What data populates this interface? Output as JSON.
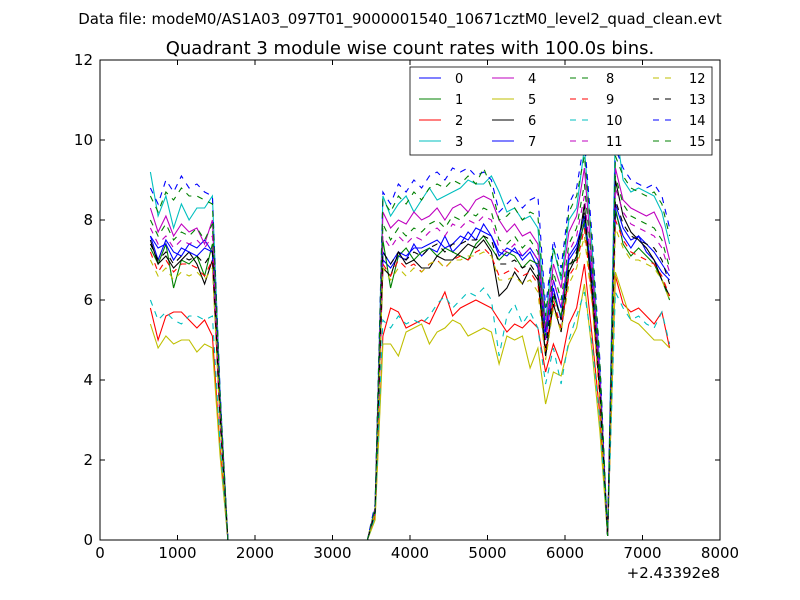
{
  "suptitle": "Data file: modeM0/AS1A03_097T01_9000001540_10671cztM0_level2_quad_clean.evt",
  "chart_data": {
    "type": "line",
    "title": "Quadrant 3 module wise count rates with 100.0s bins.",
    "xlabel": "",
    "ylabel": "",
    "xlim": [
      0,
      8000
    ],
    "ylim": [
      0,
      12
    ],
    "x_offset_label": "+2.43392e8",
    "xticks": [
      "0",
      "1000",
      "2000",
      "3000",
      "4000",
      "5000",
      "6000",
      "7000",
      "8000"
    ],
    "yticks": [
      "0",
      "2",
      "4",
      "6",
      "8",
      "10",
      "12"
    ],
    "grid": false,
    "legend": {
      "placement": "top-right",
      "columns": 4
    },
    "x": [
      650,
      750,
      850,
      950,
      1050,
      1150,
      1250,
      1350,
      1450,
      1550,
      1650,
      1750,
      1850,
      1950,
      2050,
      2150,
      2250,
      2350,
      2450,
      2550,
      2650,
      2750,
      2850,
      2950,
      3050,
      3150,
      3250,
      3350,
      3450,
      3550,
      3650,
      3750,
      3850,
      3950,
      4050,
      4150,
      4250,
      4350,
      4450,
      4550,
      4650,
      4750,
      4850,
      4950,
      5050,
      5150,
      5250,
      5350,
      5450,
      5550,
      5650,
      5750,
      5850,
      5950,
      6050,
      6150,
      6250,
      6350,
      6450,
      6550,
      6650,
      6750,
      6850,
      6950,
      7050,
      7150,
      7250,
      7350
    ],
    "series": [
      {
        "name": "0",
        "color": "#0000ff",
        "dash": "solid",
        "values": [
          7.6,
          7.0,
          7.5,
          7.2,
          7.1,
          7.4,
          7.3,
          7.5,
          7.2,
          3.0,
          0,
          0,
          0,
          0,
          0,
          0,
          0,
          0,
          0,
          0,
          0,
          0,
          0,
          0,
          0,
          0,
          0,
          0,
          0,
          0.7,
          7.0,
          6.8,
          7.1,
          7.0,
          7.4,
          7.1,
          7.3,
          7.2,
          7.6,
          7.2,
          7.4,
          7.7,
          7.5,
          7.9,
          7.6,
          7.2,
          7.1,
          7.3,
          7.0,
          7.2,
          6.8,
          5.0,
          6.3,
          5.5,
          7.0,
          7.3,
          7.9,
          6.5,
          4.0,
          0.1,
          8.2,
          7.6,
          7.3,
          7.6,
          7.2,
          7.0,
          6.7,
          6.5
        ]
      },
      {
        "name": "1",
        "color": "#008000",
        "dash": "solid",
        "values": [
          7.3,
          6.9,
          7.4,
          6.3,
          7.0,
          6.9,
          7.1,
          6.6,
          7.4,
          3.1,
          0,
          0,
          0,
          0,
          0,
          0,
          0,
          0,
          0,
          0,
          0,
          0,
          0,
          0,
          0,
          0,
          0,
          0,
          0,
          0.7,
          7.5,
          6.3,
          7.1,
          7.3,
          7.0,
          7.2,
          7.3,
          7.1,
          7.3,
          7.2,
          7.1,
          7.0,
          7.4,
          7.6,
          7.3,
          7.0,
          7.2,
          7.1,
          6.8,
          7.0,
          6.9,
          4.6,
          6.1,
          5.6,
          6.9,
          7.0,
          8.0,
          6.2,
          3.7,
          0.1,
          8.3,
          7.4,
          7.1,
          7.3,
          7.1,
          6.9,
          6.5,
          6.0
        ]
      },
      {
        "name": "2",
        "color": "#ff0000",
        "dash": "solid",
        "values": [
          5.8,
          5.0,
          5.6,
          5.7,
          5.7,
          5.5,
          5.3,
          5.5,
          5.1,
          2.3,
          0,
          0,
          0,
          0,
          0,
          0,
          0,
          0,
          0,
          0,
          0,
          0,
          0,
          0,
          0,
          0,
          0,
          0,
          0,
          0.6,
          5.1,
          5.8,
          5.7,
          5.3,
          5.4,
          5.5,
          5.4,
          5.8,
          6.2,
          5.6,
          5.8,
          5.9,
          6.0,
          5.9,
          5.8,
          5.5,
          5.2,
          5.4,
          5.3,
          5.5,
          5.3,
          4.2,
          4.9,
          4.4,
          5.4,
          5.8,
          6.9,
          5.1,
          3.1,
          0.1,
          6.6,
          5.9,
          5.7,
          5.8,
          5.6,
          5.4,
          5.7,
          4.8
        ]
      },
      {
        "name": "3",
        "color": "#00bfbf",
        "dash": "solid",
        "values": [
          9.2,
          8.1,
          8.6,
          7.8,
          8.4,
          8.0,
          8.3,
          8.3,
          8.6,
          3.7,
          0,
          0,
          0,
          0,
          0,
          0,
          0,
          0,
          0,
          0,
          0,
          0,
          0,
          0,
          0,
          0,
          0,
          0,
          0,
          0.8,
          8.6,
          8.1,
          8.4,
          8.6,
          8.2,
          8.5,
          8.8,
          8.5,
          8.6,
          8.7,
          8.8,
          9.0,
          8.9,
          8.9,
          9.1,
          8.7,
          8.2,
          8.3,
          8.0,
          8.1,
          7.8,
          5.5,
          7.3,
          6.5,
          8.0,
          8.3,
          9.8,
          7.3,
          4.3,
          0.1,
          10.4,
          9.0,
          8.7,
          8.8,
          8.7,
          8.6,
          8.2,
          7.4
        ]
      },
      {
        "name": "4",
        "color": "#bf00bf",
        "dash": "solid",
        "values": [
          8.3,
          7.7,
          8.1,
          7.6,
          7.9,
          7.7,
          7.8,
          7.4,
          8.0,
          3.5,
          0,
          0,
          0,
          0,
          0,
          0,
          0,
          0,
          0,
          0,
          0,
          0,
          0,
          0,
          0,
          0,
          0,
          0,
          0,
          0.8,
          8.2,
          7.8,
          8.0,
          7.9,
          8.2,
          8.0,
          8.1,
          8.3,
          8.0,
          8.3,
          8.4,
          8.2,
          8.5,
          8.6,
          8.5,
          8.0,
          7.7,
          7.9,
          7.6,
          7.7,
          7.4,
          5.3,
          6.9,
          6.3,
          7.7,
          8.1,
          9.3,
          6.9,
          4.1,
          0.1,
          9.3,
          8.5,
          8.3,
          8.2,
          8.1,
          8.2,
          7.8,
          7.0
        ]
      },
      {
        "name": "5",
        "color": "#bfbf00",
        "dash": "solid",
        "values": [
          5.4,
          4.8,
          5.1,
          4.9,
          5.0,
          5.0,
          4.7,
          4.9,
          4.8,
          2.1,
          0,
          0,
          0,
          0,
          0,
          0,
          0,
          0,
          0,
          0,
          0,
          0,
          0,
          0,
          0,
          0,
          0,
          0,
          0,
          0.5,
          4.9,
          4.9,
          4.6,
          5.2,
          5.3,
          5.4,
          4.9,
          5.2,
          5.3,
          5.5,
          5.4,
          5.1,
          5.2,
          5.3,
          5.2,
          4.4,
          5.1,
          5.0,
          5.1,
          4.3,
          4.8,
          3.4,
          4.2,
          4.1,
          4.9,
          5.3,
          6.4,
          4.7,
          2.7,
          0.1,
          6.7,
          6.1,
          5.5,
          5.4,
          5.2,
          5.0,
          5.0,
          4.8
        ]
      },
      {
        "name": "6",
        "color": "#000000",
        "dash": "solid",
        "values": [
          7.5,
          6.9,
          7.1,
          6.8,
          7.0,
          7.2,
          6.9,
          6.4,
          7.0,
          3.0,
          0,
          0,
          0,
          0,
          0,
          0,
          0,
          0,
          0,
          0,
          0,
          0,
          0,
          0,
          0,
          0,
          0,
          0,
          0,
          0.7,
          6.8,
          6.6,
          7.2,
          6.9,
          7.0,
          6.8,
          6.8,
          7.1,
          7.0,
          7.0,
          7.2,
          7.4,
          7.3,
          7.5,
          7.2,
          6.1,
          6.3,
          6.7,
          6.4,
          6.8,
          6.5,
          4.6,
          5.9,
          5.2,
          6.7,
          7.1,
          8.4,
          6.1,
          3.6,
          0.1,
          9.0,
          8.1,
          7.7,
          7.5,
          7.3,
          7.0,
          6.5,
          6.1
        ]
      },
      {
        "name": "7",
        "color": "#0000ff",
        "dash": "solid",
        "values": [
          7.6,
          7.3,
          7.4,
          7.0,
          7.3,
          7.2,
          7.1,
          7.3,
          7.2,
          3.0,
          0,
          0,
          0,
          0,
          0,
          0,
          0,
          0,
          0,
          0,
          0,
          0,
          0,
          0,
          0,
          0,
          0,
          0,
          0,
          0.7,
          7.2,
          6.9,
          7.2,
          7.1,
          7.3,
          7.3,
          7.4,
          7.5,
          7.3,
          7.4,
          7.6,
          7.5,
          7.8,
          7.7,
          7.6,
          7.1,
          7.3,
          7.2,
          7.1,
          7.3,
          7.0,
          5.2,
          6.5,
          5.8,
          7.1,
          7.4,
          8.1,
          6.6,
          3.9,
          0.1,
          8.4,
          7.8,
          7.5,
          7.6,
          7.4,
          7.2,
          6.9,
          6.6
        ]
      },
      {
        "name": "8",
        "color": "#008000",
        "dash": "dashed",
        "values": [
          8.0,
          7.6,
          7.9,
          7.5,
          7.7,
          7.6,
          7.8,
          7.5,
          7.9,
          3.4,
          0,
          0,
          0,
          0,
          0,
          0,
          0,
          0,
          0,
          0,
          0,
          0,
          0,
          0,
          0,
          0,
          0,
          0,
          0,
          0.8,
          7.9,
          7.5,
          7.8,
          7.6,
          7.8,
          7.7,
          7.9,
          8.0,
          7.8,
          8.1,
          8.0,
          8.2,
          8.1,
          8.3,
          8.2,
          7.5,
          7.4,
          7.6,
          7.3,
          7.5,
          7.2,
          5.1,
          6.7,
          6.0,
          7.4,
          7.8,
          8.9,
          6.8,
          4.0,
          0.1,
          9.1,
          8.4,
          8.1,
          8.0,
          7.9,
          7.8,
          7.5,
          6.8
        ]
      },
      {
        "name": "9",
        "color": "#ff0000",
        "dash": "dashed",
        "values": [
          7.2,
          6.7,
          7.0,
          6.7,
          6.9,
          6.9,
          6.8,
          6.6,
          7.0,
          3.0,
          0,
          0,
          0,
          0,
          0,
          0,
          0,
          0,
          0,
          0,
          0,
          0,
          0,
          0,
          0,
          0,
          0,
          0,
          0,
          0.7,
          6.9,
          6.6,
          7.0,
          6.8,
          6.9,
          6.7,
          6.9,
          7.0,
          6.8,
          7.0,
          7.1,
          7.0,
          7.2,
          7.3,
          7.1,
          6.6,
          6.7,
          6.8,
          6.6,
          6.7,
          6.4,
          4.7,
          6.0,
          5.3,
          6.6,
          6.9,
          7.8,
          6.0,
          3.5,
          0.1,
          8.0,
          7.5,
          7.2,
          7.1,
          7.0,
          6.9,
          6.6,
          6.1
        ]
      },
      {
        "name": "10",
        "color": "#00bfbf",
        "dash": "dashed",
        "values": [
          6.0,
          5.5,
          5.7,
          5.5,
          5.4,
          5.6,
          5.6,
          5.5,
          5.6,
          2.4,
          0,
          0,
          0,
          0,
          0,
          0,
          0,
          0,
          0,
          0,
          0,
          0,
          0,
          0,
          0,
          0,
          0,
          0,
          0,
          0.6,
          5.5,
          5.3,
          5.6,
          5.4,
          5.5,
          5.4,
          5.6,
          5.9,
          6.1,
          5.8,
          6.0,
          6.2,
          6.1,
          6.3,
          6.0,
          4.6,
          5.6,
          5.9,
          5.4,
          5.7,
          5.3,
          3.9,
          4.8,
          3.9,
          5.0,
          5.6,
          6.2,
          4.9,
          3.0,
          0.1,
          6.2,
          5.8,
          5.5,
          5.6,
          5.4,
          5.3,
          5.7,
          4.9
        ]
      },
      {
        "name": "11",
        "color": "#bf00bf",
        "dash": "dashed",
        "values": [
          7.8,
          7.4,
          7.6,
          7.3,
          7.5,
          7.4,
          7.5,
          7.3,
          7.6,
          3.3,
          0,
          0,
          0,
          0,
          0,
          0,
          0,
          0,
          0,
          0,
          0,
          0,
          0,
          0,
          0,
          0,
          0,
          0,
          0,
          0.7,
          7.6,
          7.3,
          7.6,
          7.4,
          7.6,
          7.5,
          7.7,
          7.8,
          7.6,
          7.9,
          7.8,
          8.0,
          7.9,
          8.1,
          8.0,
          7.3,
          7.2,
          7.4,
          7.1,
          7.3,
          7.0,
          5.0,
          6.5,
          5.8,
          7.2,
          7.6,
          8.6,
          6.6,
          3.9,
          0.1,
          8.8,
          8.2,
          7.9,
          7.8,
          7.7,
          7.6,
          7.3,
          6.7
        ]
      },
      {
        "name": "12",
        "color": "#bfbf00",
        "dash": "dashed",
        "values": [
          7.0,
          6.6,
          6.8,
          6.5,
          6.7,
          6.6,
          6.7,
          6.5,
          6.8,
          2.9,
          0,
          0,
          0,
          0,
          0,
          0,
          0,
          0,
          0,
          0,
          0,
          0,
          0,
          0,
          0,
          0,
          0,
          0,
          0,
          0.7,
          6.8,
          6.5,
          6.8,
          6.6,
          6.8,
          6.7,
          6.9,
          7.0,
          6.8,
          7.0,
          7.0,
          7.1,
          7.1,
          7.2,
          7.1,
          6.5,
          6.5,
          6.6,
          6.4,
          6.5,
          6.2,
          4.5,
          5.8,
          5.2,
          6.4,
          6.8,
          7.6,
          5.9,
          3.5,
          0.1,
          7.8,
          7.3,
          7.0,
          7.0,
          6.9,
          6.8,
          6.5,
          6.0
        ]
      },
      {
        "name": "13",
        "color": "#000000",
        "dash": "dashed",
        "values": [
          7.4,
          7.0,
          7.2,
          6.9,
          7.1,
          7.0,
          7.1,
          6.9,
          7.2,
          3.1,
          0,
          0,
          0,
          0,
          0,
          0,
          0,
          0,
          0,
          0,
          0,
          0,
          0,
          0,
          0,
          0,
          0,
          0,
          0,
          0.7,
          7.2,
          6.9,
          7.2,
          7.0,
          7.2,
          7.1,
          7.3,
          7.4,
          7.2,
          7.4,
          7.4,
          7.5,
          7.5,
          7.6,
          7.5,
          6.9,
          6.9,
          7.0,
          6.8,
          6.9,
          6.6,
          4.8,
          6.2,
          5.5,
          6.8,
          7.2,
          8.2,
          6.3,
          3.7,
          0.1,
          8.5,
          7.9,
          7.6,
          7.5,
          7.4,
          7.3,
          7.0,
          6.4
        ]
      },
      {
        "name": "14",
        "color": "#0000ff",
        "dash": "dashed",
        "values": [
          8.8,
          8.4,
          9.0,
          8.7,
          9.1,
          8.8,
          8.9,
          8.7,
          8.6,
          3.7,
          0,
          0,
          0,
          0,
          0,
          0,
          0,
          0,
          0,
          0,
          0,
          0,
          0,
          0,
          0,
          0,
          0,
          0,
          0,
          0.9,
          8.7,
          8.4,
          8.9,
          8.7,
          9.0,
          8.8,
          9.1,
          9.2,
          9.0,
          9.3,
          9.2,
          9.3,
          9.1,
          9.2,
          9.0,
          8.2,
          8.4,
          8.6,
          8.3,
          8.5,
          8.6,
          5.8,
          7.5,
          6.8,
          8.4,
          8.8,
          10.0,
          7.6,
          4.5,
          0.1,
          9.8,
          9.3,
          9.0,
          8.9,
          8.8,
          8.9,
          8.6,
          7.8
        ]
      },
      {
        "name": "15",
        "color": "#008000",
        "dash": "dashed",
        "values": [
          8.6,
          8.2,
          8.7,
          8.5,
          8.8,
          8.6,
          8.6,
          8.5,
          8.4,
          3.6,
          0,
          0,
          0,
          0,
          0,
          0,
          0,
          0,
          0,
          0,
          0,
          0,
          0,
          0,
          0,
          0,
          0,
          0,
          0,
          0.8,
          8.5,
          8.2,
          8.6,
          8.4,
          8.7,
          8.5,
          8.8,
          8.9,
          8.8,
          9.0,
          8.9,
          9.1,
          8.9,
          9.3,
          8.8,
          8.0,
          8.1,
          8.3,
          8.0,
          8.2,
          8.1,
          5.6,
          7.3,
          6.6,
          8.2,
          8.6,
          9.6,
          7.4,
          4.4,
          0.1,
          9.6,
          9.1,
          8.8,
          8.7,
          8.6,
          8.7,
          8.4,
          7.6
        ]
      }
    ]
  }
}
